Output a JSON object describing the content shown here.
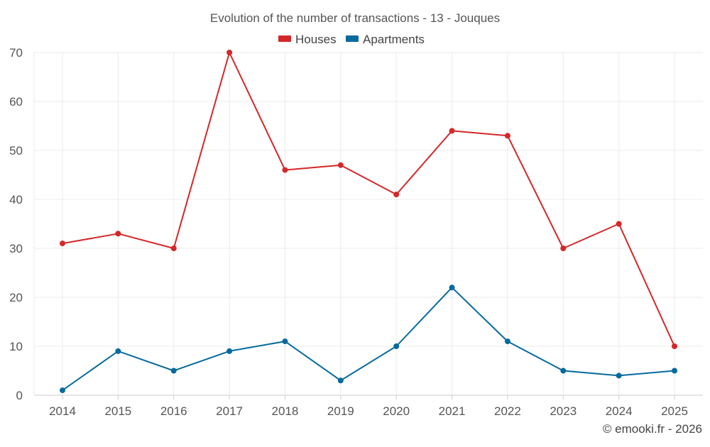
{
  "chart_data": {
    "type": "line",
    "title": "Evolution of the number of transactions - 13 - Jouques",
    "categories": [
      "2014",
      "2015",
      "2016",
      "2017",
      "2018",
      "2019",
      "2020",
      "2021",
      "2022",
      "2023",
      "2024",
      "2025"
    ],
    "series": [
      {
        "name": "Houses",
        "color": "#d62728",
        "values": [
          31,
          33,
          30,
          70,
          46,
          47,
          41,
          54,
          53,
          30,
          35,
          10
        ]
      },
      {
        "name": "Apartments",
        "color": "#066a9e",
        "values": [
          1,
          9,
          5,
          9,
          11,
          3,
          10,
          22,
          11,
          5,
          4,
          5
        ]
      }
    ],
    "ylim": [
      0,
      70
    ],
    "yticks": [
      0,
      10,
      20,
      30,
      40,
      50,
      60,
      70
    ],
    "xlabel": "",
    "ylabel": "",
    "grid": true,
    "legend_position": "top-center"
  },
  "footer": {
    "credit": "© emooki.fr - 2026"
  }
}
